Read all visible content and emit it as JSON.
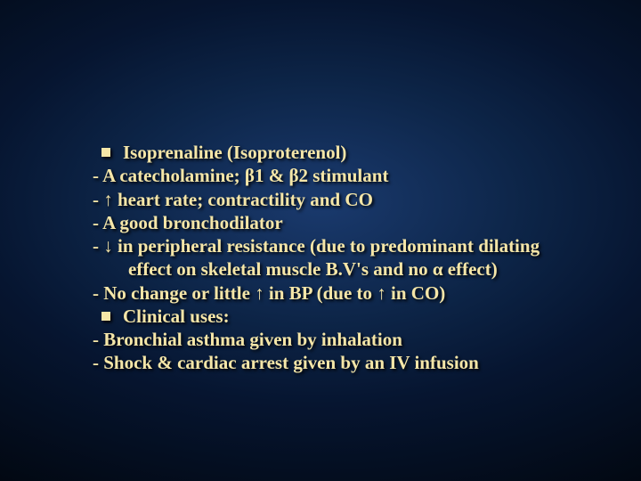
{
  "slide": {
    "background_gradient": {
      "center": "#1a3a6e",
      "mid": "#0d2548",
      "outer": "#061530",
      "edge": "#020812"
    },
    "text_color": "#f5e6a8",
    "font_family": "Times New Roman",
    "font_size_pt": 21,
    "font_weight": "bold",
    "shadow_color": "rgba(0,0,0,0.9)",
    "lines": [
      {
        "type": "bullet",
        "text": "Isoprenaline (Isoproterenol)"
      },
      {
        "type": "dash",
        "text": "- A catecholamine; β1 & β2 stimulant"
      },
      {
        "type": "dash",
        "text": "- ↑ heart rate; contractility and CO"
      },
      {
        "type": "dash",
        "text": "- A good bronchodilator"
      },
      {
        "type": "dash",
        "text": "- ↓ in peripheral resistance (due to predominant dilating"
      },
      {
        "type": "cont",
        "text": "effect on skeletal muscle B.V's and no α effect)"
      },
      {
        "type": "dash",
        "text": "- No change or little ↑ in BP (due to ↑ in CO)"
      },
      {
        "type": "bullet",
        "text": "Clinical uses:"
      },
      {
        "type": "dash",
        "text": "- Bronchial asthma given by inhalation"
      },
      {
        "type": "dash",
        "text": "- Shock & cardiac arrest given by an IV infusion"
      }
    ]
  }
}
